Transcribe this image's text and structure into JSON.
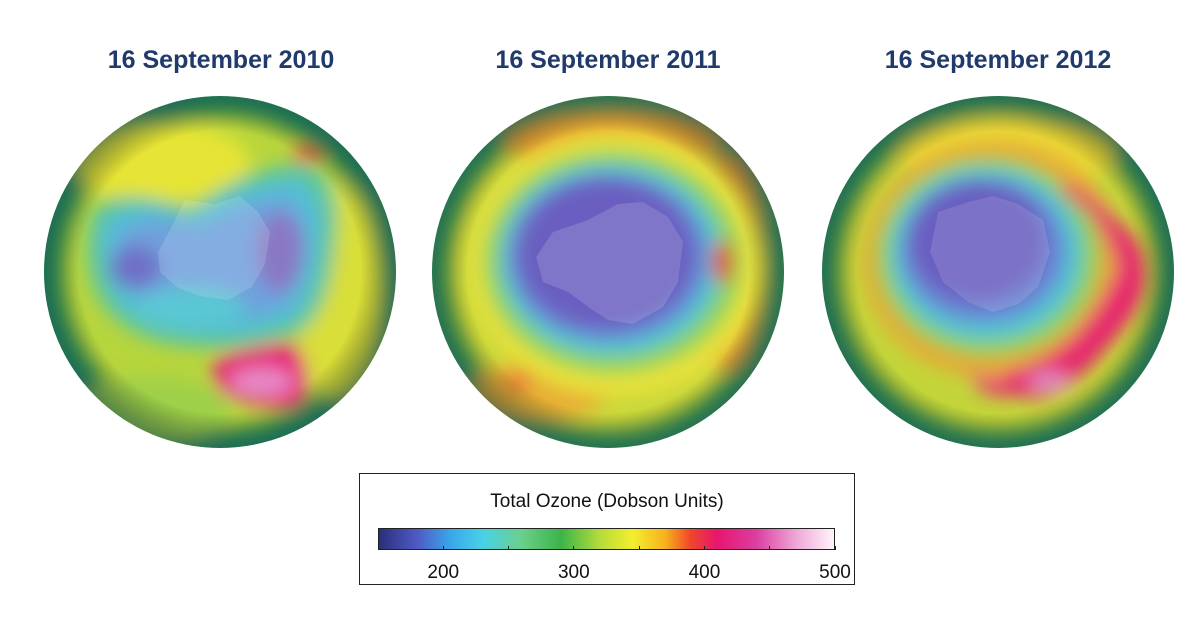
{
  "title_color": "#1f3a6b",
  "panels": [
    {
      "title": "16 September 2010"
    },
    {
      "title": "16 September 2011"
    },
    {
      "title": "16 September 2012"
    }
  ],
  "legend": {
    "title": "Total Ozone (Dobson Units)",
    "range": [
      150,
      500
    ],
    "ticks": [
      {
        "value": 200,
        "label": "200"
      },
      {
        "value": 300,
        "label": "300"
      },
      {
        "value": 400,
        "label": "400"
      },
      {
        "value": 500,
        "label": "500"
      }
    ],
    "minor_ticks": [
      250,
      350,
      450
    ],
    "colormap": [
      {
        "value": 150,
        "color": "#2a2f7a"
      },
      {
        "value": 180,
        "color": "#4f5bc6"
      },
      {
        "value": 205,
        "color": "#3aa6e8"
      },
      {
        "value": 230,
        "color": "#48d2e8"
      },
      {
        "value": 260,
        "color": "#6ad08a"
      },
      {
        "value": 290,
        "color": "#3bb44a"
      },
      {
        "value": 320,
        "color": "#b5dc3a"
      },
      {
        "value": 345,
        "color": "#f3ee2f"
      },
      {
        "value": 370,
        "color": "#f7b21e"
      },
      {
        "value": 390,
        "color": "#f0452a"
      },
      {
        "value": 410,
        "color": "#e8156e"
      },
      {
        "value": 440,
        "color": "#db3ea0"
      },
      {
        "value": 470,
        "color": "#eea4d6"
      },
      {
        "value": 500,
        "color": "#fff5fb"
      }
    ]
  }
}
